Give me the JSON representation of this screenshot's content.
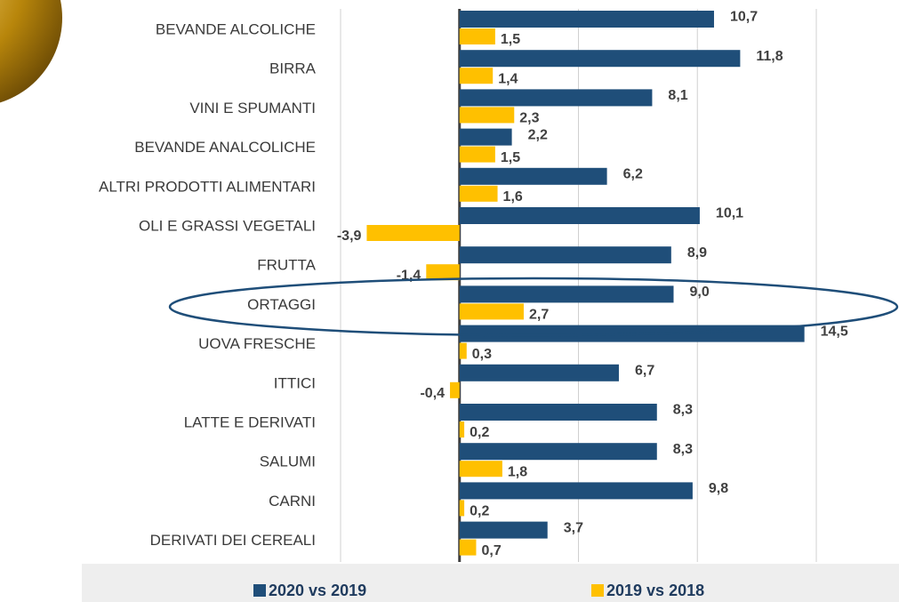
{
  "chart_data": {
    "type": "hbar",
    "categories": [
      "BEVANDE ALCOLICHE",
      "BIRRA",
      "VINI E SPUMANTI",
      "BEVANDE ANALCOLICHE",
      "ALTRI PRODOTTI ALIMENTARI",
      "OLI E GRASSI VEGETALI",
      "FRUTTA",
      "ORTAGGI",
      "UOVA FRESCHE",
      "ITTICI",
      "LATTE E DERIVATI",
      "SALUMI",
      "CARNI",
      "DERIVATI DEI CEREALI"
    ],
    "series": [
      {
        "name": "2020 vs  2019",
        "color": "#1f4e79",
        "values": [
          10.7,
          11.8,
          8.1,
          2.2,
          6.2,
          10.1,
          8.9,
          9.0,
          14.5,
          6.7,
          8.3,
          8.3,
          9.8,
          3.7
        ],
        "value_labels": [
          "10,7",
          "11,8",
          "8,1",
          "2,2",
          "6,2",
          "10,1",
          "8,9",
          "9,0",
          "14,5",
          "6,7",
          "8,3",
          "8,3",
          "9,8",
          "3,7"
        ]
      },
      {
        "name": "2019 vs 2018",
        "color": "#ffc000",
        "values": [
          1.5,
          1.4,
          2.3,
          1.5,
          1.6,
          -3.9,
          -1.4,
          2.7,
          0.3,
          -0.4,
          0.2,
          1.8,
          0.2,
          0.7
        ],
        "value_labels": [
          "1,5",
          "1,4",
          "2,3",
          "1,5",
          "1,6",
          "-3,9",
          "-1,4",
          "2,7",
          "0,3",
          "-0,4",
          "0,2",
          "1,8",
          "0,2",
          "0,7"
        ]
      }
    ],
    "xlim": [
      -5,
      15
    ],
    "xticks": [
      -5,
      0,
      5,
      10,
      15
    ],
    "grid": true
  }
}
